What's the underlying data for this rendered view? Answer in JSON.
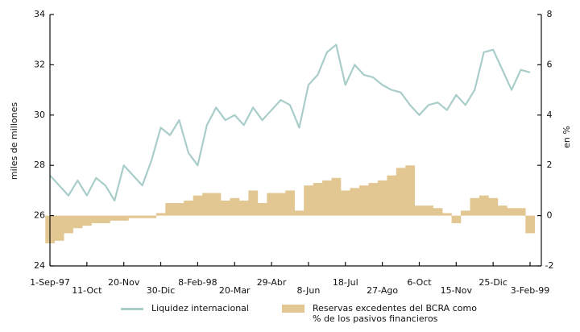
{
  "chart_data": {
    "type": "combo",
    "y_label": "miles de millones",
    "y2_label": "en %",
    "categories": [
      "1-Sep-97",
      null,
      null,
      null,
      "11-Oct",
      null,
      null,
      null,
      "20-Nov",
      null,
      null,
      null,
      "30-Dic",
      null,
      null,
      null,
      "8-Feb-98",
      null,
      null,
      null,
      "20-Mar",
      null,
      null,
      null,
      "29-Abr",
      null,
      null,
      null,
      "8-Jun",
      null,
      null,
      null,
      "18-Jul",
      null,
      null,
      null,
      "27-Ago",
      null,
      null,
      null,
      "6-Oct",
      null,
      null,
      null,
      "15-Nov",
      null,
      null,
      null,
      "25-Dic",
      null,
      null,
      null,
      "3-Feb-99"
    ],
    "series": [
      {
        "name": "Liquidez internacional",
        "type": "line",
        "color": "#a9cdc9",
        "axis": "y",
        "values": [
          27.6,
          27.2,
          26.8,
          27.4,
          26.8,
          27.5,
          27.2,
          26.6,
          28.0,
          27.6,
          27.2,
          28.2,
          29.5,
          29.2,
          29.8,
          28.5,
          28.0,
          29.6,
          30.3,
          29.8,
          30.0,
          29.6,
          30.3,
          29.8,
          30.2,
          30.6,
          30.4,
          29.5,
          31.2,
          31.6,
          32.5,
          32.8,
          31.2,
          32.0,
          31.6,
          31.5,
          31.2,
          31.0,
          30.9,
          30.4,
          30.0,
          30.4,
          30.5,
          30.2,
          30.8,
          30.4,
          31.0,
          32.5,
          32.6,
          31.8,
          31.0,
          31.8,
          31.7
        ]
      },
      {
        "name": "Reservas excedentes del BCRA como % de los pasivos financieros",
        "type": "bar",
        "color": "#e2c792",
        "axis": "y2",
        "values": [
          -1.1,
          -1.0,
          -0.7,
          -0.5,
          -0.4,
          -0.3,
          -0.3,
          -0.2,
          -0.2,
          -0.1,
          -0.1,
          -0.1,
          0.1,
          0.5,
          0.5,
          0.6,
          0.8,
          0.9,
          0.9,
          0.6,
          0.7,
          0.6,
          1.0,
          0.5,
          0.9,
          0.9,
          1.0,
          0.2,
          1.2,
          1.3,
          1.4,
          1.5,
          1.0,
          1.1,
          1.2,
          1.3,
          1.4,
          1.6,
          1.9,
          2.0,
          0.4,
          0.4,
          0.3,
          0.1,
          -0.3,
          0.2,
          0.7,
          0.8,
          0.7,
          0.4,
          0.3,
          0.3,
          -0.7
        ]
      }
    ],
    "ylim": [
      24,
      34
    ],
    "yticks": [
      24,
      26,
      28,
      30,
      32,
      34
    ],
    "y2lim": [
      -2,
      8
    ],
    "y2ticks": [
      -2,
      0,
      2,
      4,
      6,
      8
    ]
  }
}
